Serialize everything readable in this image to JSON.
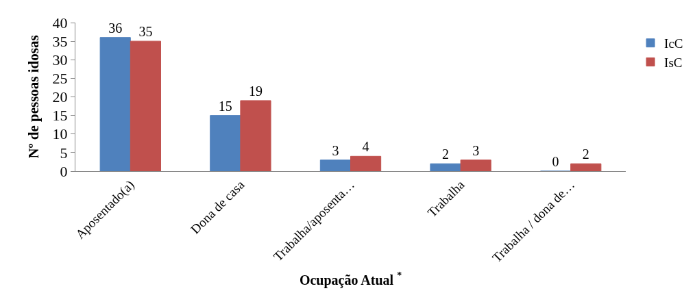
{
  "chart_data": {
    "type": "bar",
    "xlabel": "Ocupação Atual $^{*}$",
    "ylabel": "Nº de pessoas idosas",
    "categories": [
      "Aposentado(a)",
      "Dona de casa",
      "Trabalha/aposenta…",
      "Trabalha",
      "Trabalha / dona de…"
    ],
    "series": [
      {
        "name": "IcC",
        "color": "#4f81bd",
        "values": [
          36,
          15,
          3,
          2,
          0
        ]
      },
      {
        "name": "IsC",
        "color": "#c0504d",
        "values": [
          35,
          19,
          4,
          3,
          2
        ]
      }
    ],
    "ylim": [
      0,
      40
    ],
    "yticks": [
      0,
      5,
      10,
      15,
      20,
      25,
      30,
      35,
      40
    ],
    "data_labels": true,
    "legend": "right"
  }
}
